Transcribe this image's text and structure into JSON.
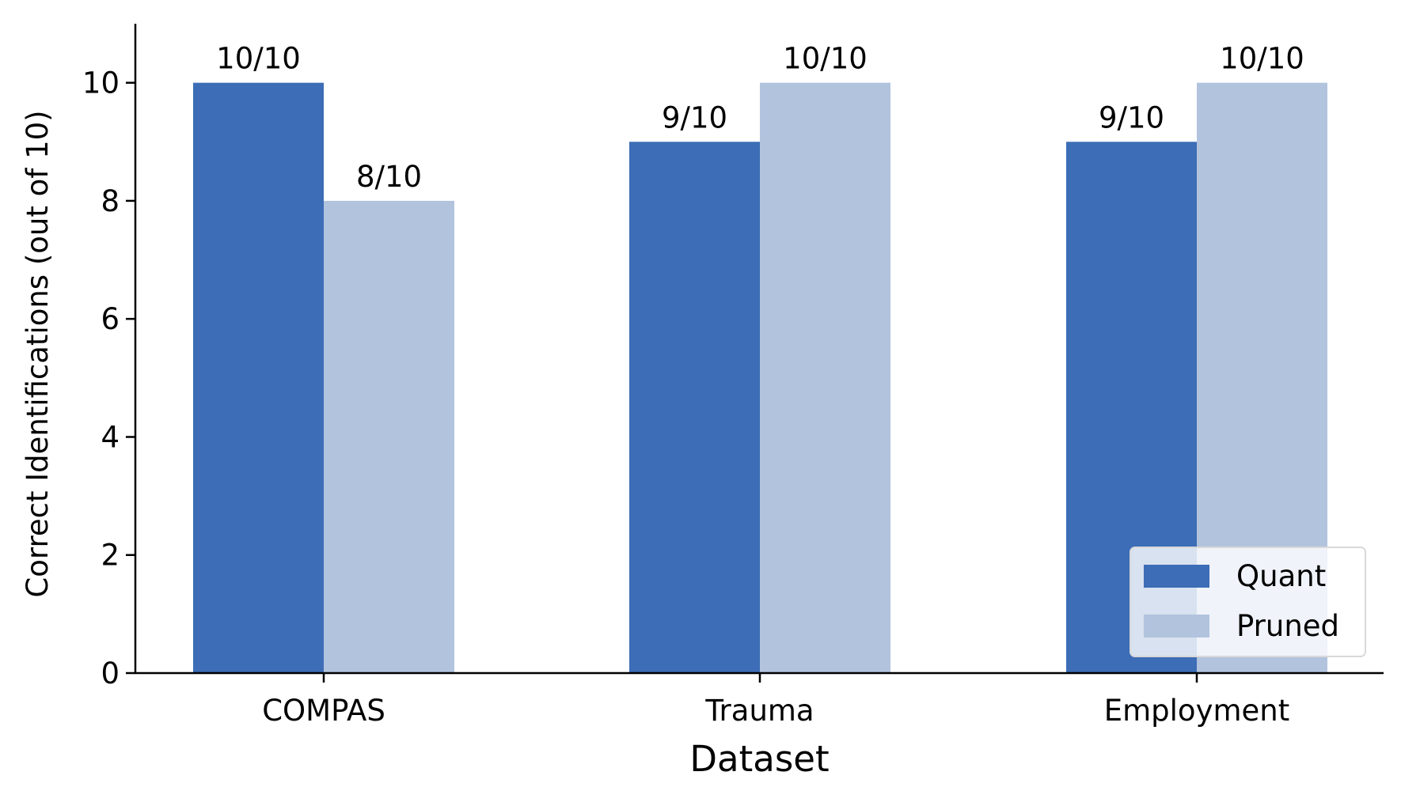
{
  "chart_data": {
    "type": "bar",
    "title": "",
    "xlabel": "Dataset",
    "ylabel": "Correct Identifications (out of 10)",
    "categories": [
      "COMPAS",
      "Trauma",
      "Employment"
    ],
    "series": [
      {
        "name": "Quant",
        "color": "#3c6db6",
        "values": [
          10,
          9,
          9
        ],
        "labels": [
          "10/10",
          "9/10",
          "9/10"
        ]
      },
      {
        "name": "Pruned",
        "color": "#b2c3de",
        "values": [
          8,
          10,
          10
        ],
        "labels": [
          "8/10",
          "10/10",
          "10/10"
        ]
      }
    ],
    "ylim": [
      0,
      11
    ],
    "yticks": [
      0,
      2,
      4,
      6,
      8,
      10
    ],
    "grid": false,
    "legend_position": "lower-right"
  }
}
